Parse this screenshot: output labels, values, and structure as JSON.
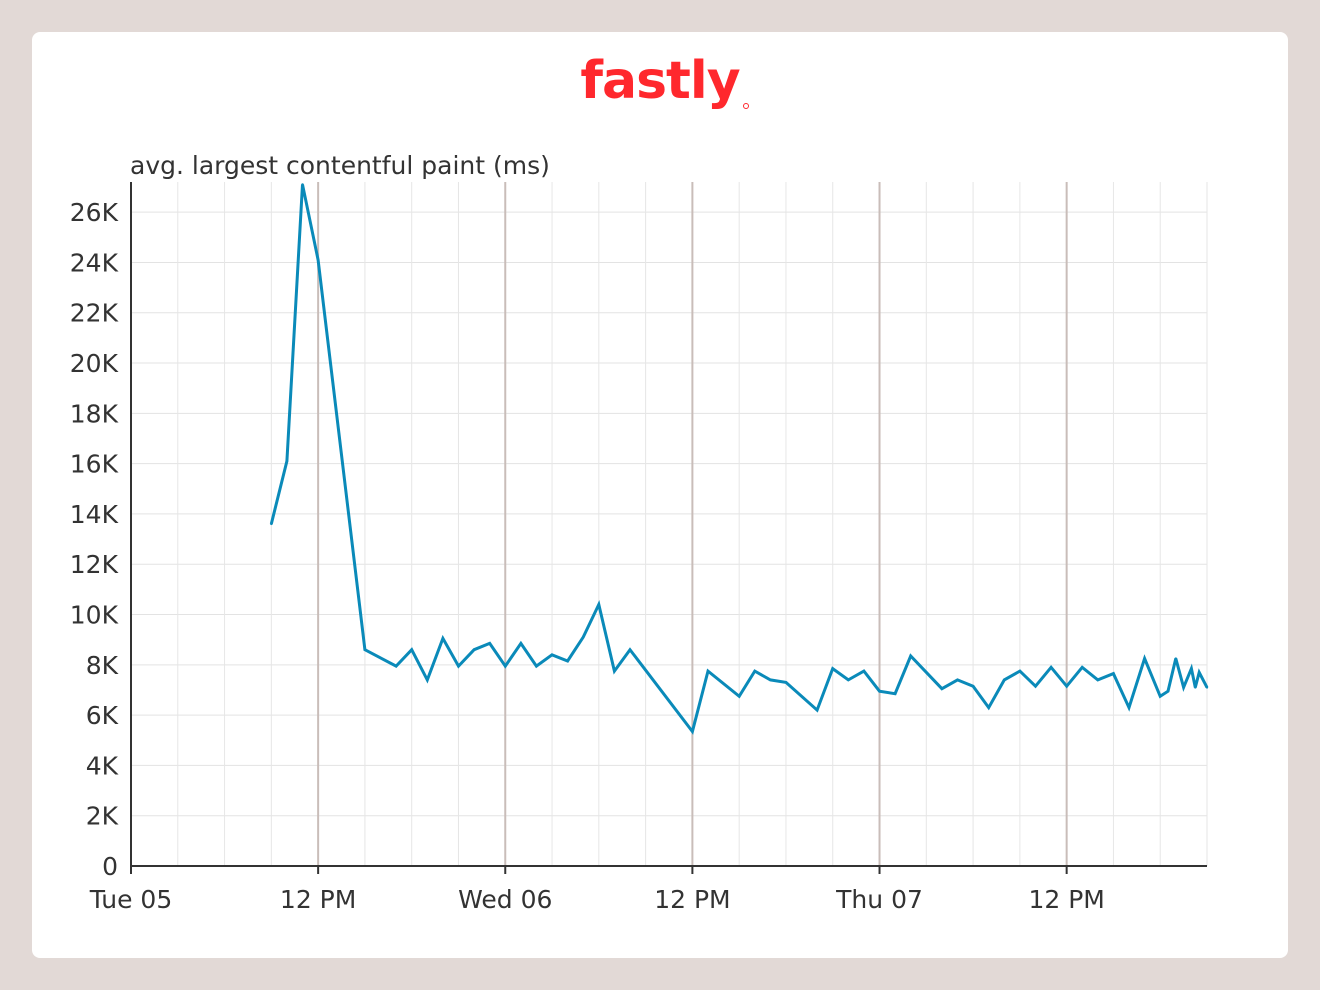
{
  "brand": {
    "logo_text": "fastly",
    "color": "#ff282d"
  },
  "chart_data": {
    "type": "line",
    "ylabel": "avg. largest contentful paint (ms)",
    "ylim": [
      0,
      27000
    ],
    "yticks": [
      0,
      2000,
      4000,
      6000,
      8000,
      10000,
      12000,
      14000,
      16000,
      18000,
      20000,
      22000,
      24000,
      26000
    ],
    "ytick_labels": [
      "0",
      "2K",
      "4K",
      "6K",
      "8K",
      "10K",
      "12K",
      "14K",
      "16K",
      "18K",
      "20K",
      "22K",
      "24K",
      "26K"
    ],
    "xlim": [
      "2021-10-05T00:00",
      "2021-10-07T21:00"
    ],
    "xticks": [
      "2021-10-05T00:00",
      "2021-10-05T12:00",
      "2021-10-06T00:00",
      "2021-10-06T12:00",
      "2021-10-07T00:00",
      "2021-10-07T12:00"
    ],
    "xtick_labels": [
      "Tue 05",
      "12 PM",
      "Wed 06",
      "12 PM",
      "Thu 07",
      "12 PM"
    ],
    "grid": true,
    "series_color": "#0a8ab9",
    "series": [
      {
        "x": [
          "2021-10-05T09:00",
          "2021-10-05T10:00",
          "2021-10-05T11:00",
          "2021-10-05T12:00",
          "2021-10-05T15:00",
          "2021-10-05T17:00",
          "2021-10-05T18:00",
          "2021-10-05T19:00",
          "2021-10-05T20:00",
          "2021-10-05T21:00",
          "2021-10-05T22:00",
          "2021-10-05T23:00",
          "2021-10-06T00:00",
          "2021-10-06T01:00",
          "2021-10-06T02:00",
          "2021-10-06T03:00",
          "2021-10-06T04:00",
          "2021-10-06T05:00",
          "2021-10-06T06:00",
          "2021-10-06T07:00",
          "2021-10-06T08:00",
          "2021-10-06T12:00",
          "2021-10-06T13:00",
          "2021-10-06T15:00",
          "2021-10-06T16:00",
          "2021-10-06T17:00",
          "2021-10-06T18:00",
          "2021-10-06T20:00",
          "2021-10-06T21:00",
          "2021-10-06T22:00",
          "2021-10-06T23:00",
          "2021-10-07T00:00",
          "2021-10-07T01:00",
          "2021-10-07T02:00",
          "2021-10-07T04:00",
          "2021-10-07T05:00",
          "2021-10-07T06:00",
          "2021-10-07T07:00",
          "2021-10-07T08:00",
          "2021-10-07T09:00",
          "2021-10-07T10:00",
          "2021-10-07T11:00",
          "2021-10-07T12:00",
          "2021-10-07T13:00",
          "2021-10-07T14:00",
          "2021-10-07T15:00",
          "2021-10-07T16:00",
          "2021-10-07T17:00",
          "2021-10-07T18:00",
          "2021-10-07T18:30",
          "2021-10-07T19:00",
          "2021-10-07T19:30",
          "2021-10-07T20:00",
          "2021-10-07T20:15",
          "2021-10-07T20:30",
          "2021-10-07T21:00"
        ],
        "values": [
          13600,
          16100,
          27100,
          24100,
          8600,
          7950,
          8600,
          7400,
          9050,
          7950,
          8600,
          8850,
          7950,
          8850,
          7950,
          8400,
          8150,
          9100,
          10400,
          7750,
          8600,
          5350,
          7750,
          6750,
          7750,
          7400,
          7300,
          6200,
          7850,
          7400,
          7750,
          6950,
          6850,
          8350,
          7050,
          7400,
          7150,
          6300,
          7400,
          7750,
          7150,
          7900,
          7150,
          7900,
          7400,
          7650,
          6300,
          8250,
          6750,
          6950,
          8250,
          7100,
          7850,
          7100,
          7700,
          7100
        ]
      }
    ]
  }
}
